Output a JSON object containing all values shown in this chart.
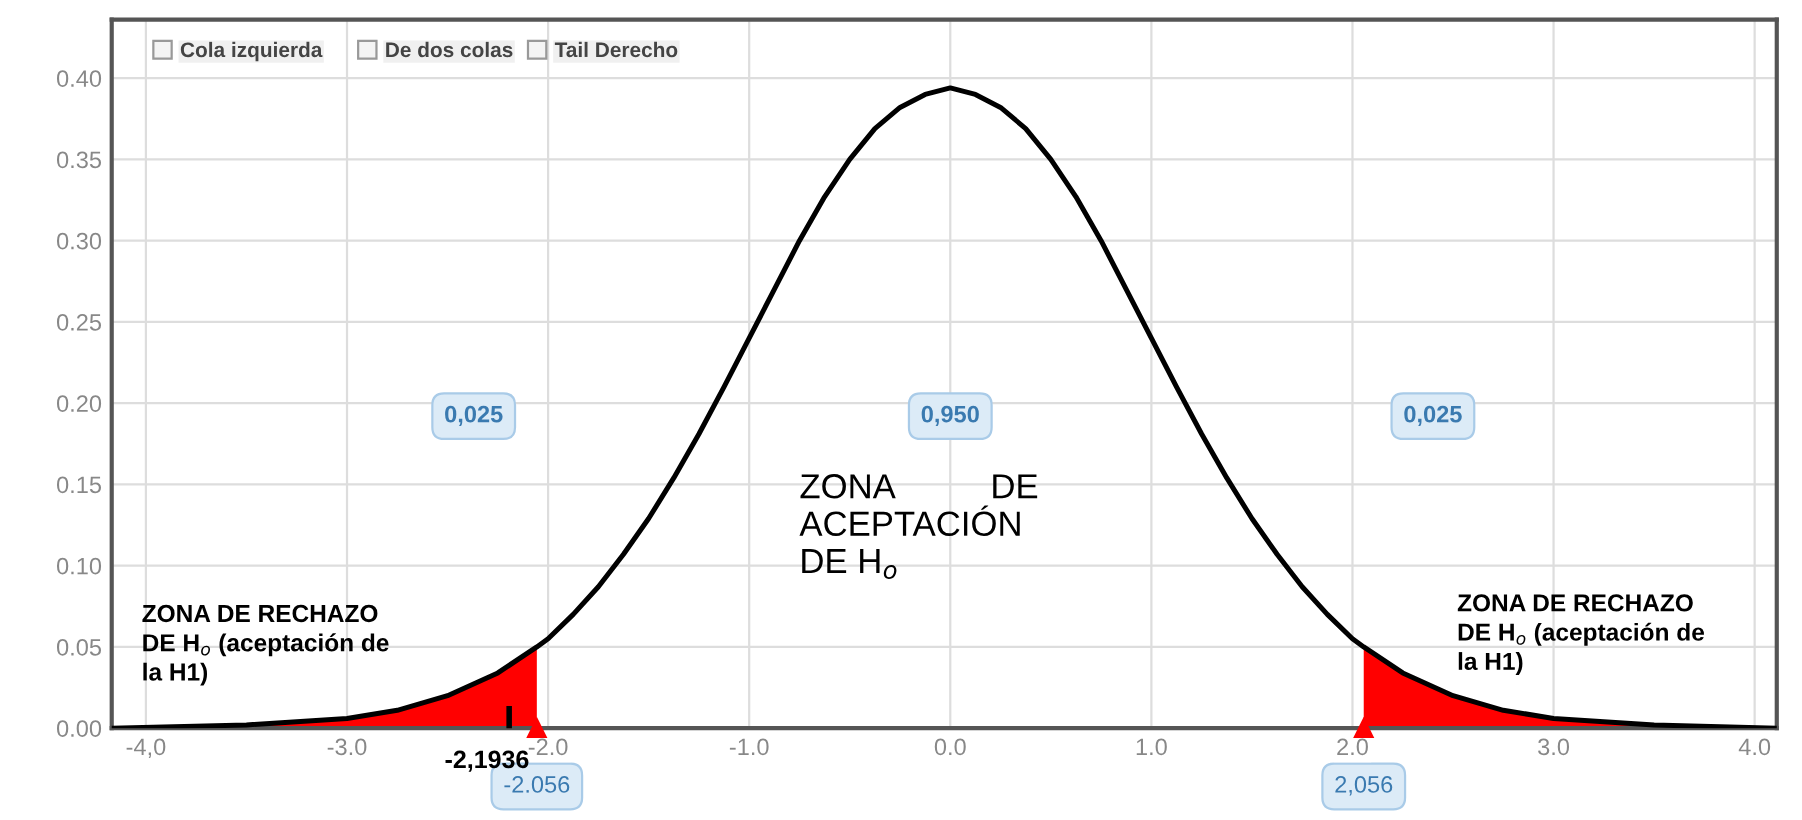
{
  "chart_data": {
    "type": "line",
    "xlim": [
      -4.17,
      4.11
    ],
    "ylim": [
      0,
      0.436
    ],
    "xticks": [
      {
        "value": -4,
        "label": "-4,0"
      },
      {
        "value": -3,
        "label": "-3.0"
      },
      {
        "value": -2,
        "label": "-2.0"
      },
      {
        "value": -1,
        "label": "-1.0"
      },
      {
        "value": 0,
        "label": "0.0"
      },
      {
        "value": 1,
        "label": "1.0"
      },
      {
        "value": 2,
        "label": "2.0"
      },
      {
        "value": 3,
        "label": "3.0"
      },
      {
        "value": 4,
        "label": "4.0"
      }
    ],
    "yticks": [
      {
        "value": 0,
        "label": "0.00"
      },
      {
        "value": 0.05,
        "label": "0.05"
      },
      {
        "value": 0.1,
        "label": "0.10"
      },
      {
        "value": 0.15,
        "label": "0.15"
      },
      {
        "value": 0.2,
        "label": "0.20"
      },
      {
        "value": 0.25,
        "label": "0.25"
      },
      {
        "value": 0.3,
        "label": "0.30"
      },
      {
        "value": 0.35,
        "label": "0.35"
      },
      {
        "value": 0.4,
        "label": "0.40"
      }
    ],
    "grid": true,
    "marker": "none",
    "line_style": "solid",
    "series": [
      {
        "type": "area",
        "color": "#ff0000",
        "x": [
          -4.17,
          -3.5,
          -3,
          -2.75,
          -2.5,
          -2.25,
          -2.056
        ],
        "values": [
          0,
          0.002,
          0.006,
          0.011,
          0.02,
          0.034,
          0.05
        ]
      },
      {
        "type": "area",
        "color": "#ff0000",
        "x": [
          2.056,
          2.25,
          2.5,
          2.75,
          3,
          3.5,
          4.11
        ],
        "values": [
          0.05,
          0.034,
          0.02,
          0.011,
          0.006,
          0.002,
          0
        ]
      },
      {
        "color": "#000000",
        "x": [
          -4.17,
          -3.5,
          -3,
          -2.75,
          -2.5,
          -2.25,
          -2.056,
          -2,
          -1.875,
          -1.75,
          -1.625,
          -1.5,
          -1.375,
          -1.25,
          -1.125,
          -1,
          -0.875,
          -0.75,
          -0.625,
          -0.5,
          -0.375,
          -0.25,
          -0.125,
          0,
          0.125,
          0.25,
          0.375,
          0.5,
          0.625,
          0.75,
          0.875,
          1,
          1.125,
          1.25,
          1.375,
          1.5,
          1.625,
          1.75,
          1.875,
          2,
          2.056,
          2.25,
          2.5,
          2.75,
          3,
          3.5,
          4.11
        ],
        "values": [
          0,
          0.002,
          0.006,
          0.011,
          0.02,
          0.034,
          0.05,
          0.055,
          0.07,
          0.087,
          0.107,
          0.129,
          0.154,
          0.181,
          0.21,
          0.24,
          0.27,
          0.3,
          0.327,
          0.35,
          0.369,
          0.382,
          0.39,
          0.394,
          0.39,
          0.382,
          0.369,
          0.35,
          0.327,
          0.3,
          0.27,
          0.24,
          0.21,
          0.181,
          0.154,
          0.129,
          0.107,
          0.087,
          0.07,
          0.055,
          0.05,
          0.034,
          0.02,
          0.011,
          0.006,
          0.002,
          0
        ]
      }
    ],
    "annotations": [
      "Cola izquierda",
      "De dos colas",
      "Tail Derecho",
      {
        "text": "0,025",
        "x": -2.37,
        "y": 0.192
      },
      {
        "text": "0,950",
        "x": 0,
        "y": 0.192
      },
      {
        "text": "0,025",
        "x": 2.4,
        "y": 0.192
      },
      {
        "text": "-2.056",
        "x": -2.056,
        "y": 0
      },
      {
        "text": "2,056",
        "x": 2.056,
        "y": 0
      },
      {
        "text": "-2,1936",
        "x": -2.1936,
        "y": 0
      },
      "ZONA          DE\nACEPTACIÓN\nDE H$_{o}$",
      "ZONA DE RECHAZO\nDE H$_{o}$ (aceptación de\nla H1)",
      "ZONA DE RECHAZO\nDE H$_{o}$ (aceptación de\nla H1)"
    ]
  }
}
